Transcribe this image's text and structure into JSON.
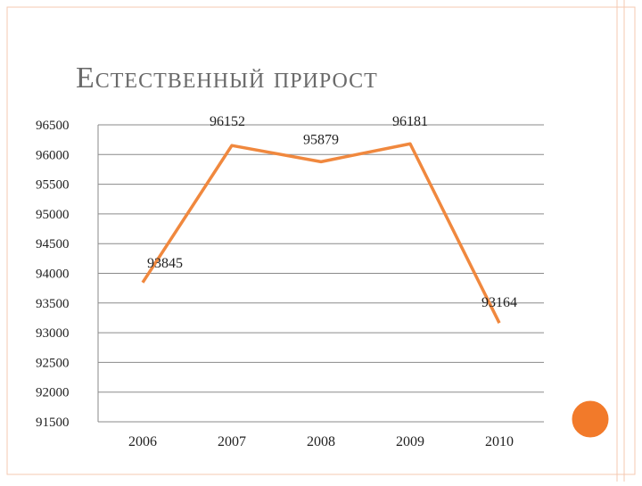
{
  "chart_data": {
    "type": "line",
    "title": "Естественный прирост",
    "categories": [
      "2006",
      "2007",
      "2008",
      "2009",
      "2010"
    ],
    "series": [
      {
        "name": "Естественный прирост",
        "color": "#f0883e",
        "values": [
          93845,
          96152,
          95879,
          96181,
          93164
        ]
      }
    ],
    "ylim": [
      91500,
      96500
    ],
    "yticks": [
      91500,
      92000,
      92500,
      93000,
      93500,
      94000,
      94500,
      95000,
      95500,
      96000,
      96500
    ],
    "grid": true
  }
}
